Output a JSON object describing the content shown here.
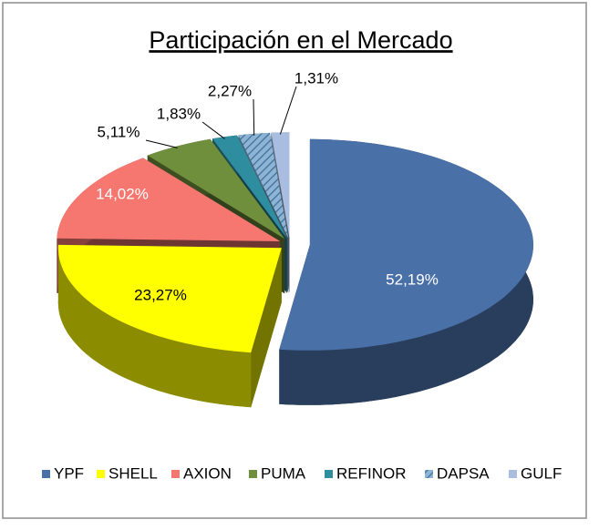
{
  "chart_data": {
    "type": "pie3d",
    "title": "Participación en el Mercado",
    "categories": [
      "YPF",
      "SHELL",
      "AXION",
      "PUMA",
      "REFINOR",
      "DAPSA",
      "GULF"
    ],
    "values": [
      52.19,
      23.27,
      14.02,
      5.11,
      1.83,
      2.27,
      1.31
    ],
    "value_labels": [
      "52,19%",
      "23,27%",
      "14,02%",
      "5,11%",
      "1,83%",
      "2,27%",
      "1,31%"
    ],
    "colors": [
      "#4a70a8",
      "#ffff00",
      "#f5776f",
      "#6f8f3c",
      "#2f8da0",
      "#8db4d4",
      "#a9bde0"
    ],
    "hatched": [
      false,
      false,
      false,
      false,
      false,
      true,
      false
    ],
    "legend": "bottom"
  }
}
